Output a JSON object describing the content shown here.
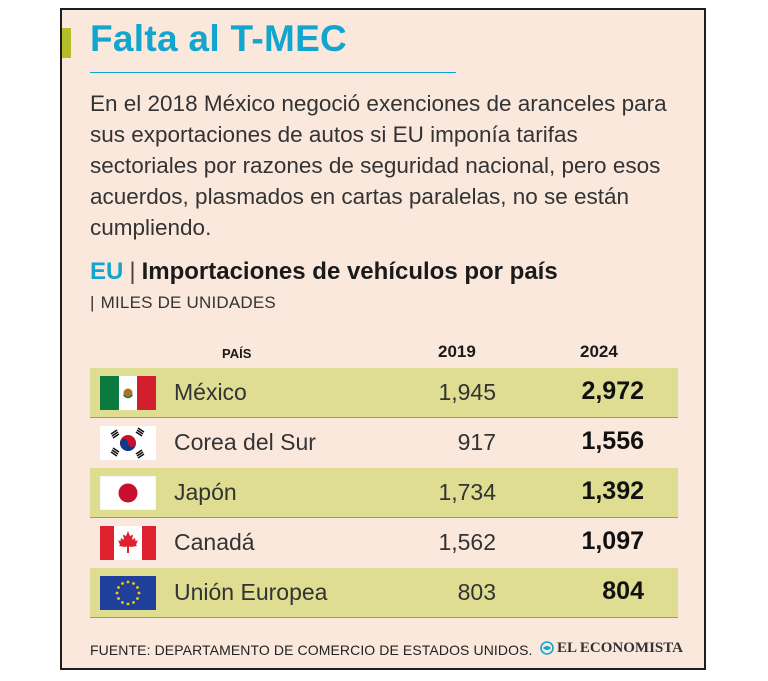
{
  "header": {
    "title": "Falta al T-MEC",
    "intro": "En el 2018 México negoció exenciones de aranceles para sus exportaciones de autos si EU imponía tarifas sectoriales por razones de seguridad nacional, pero esos acuerdos, plasmados en cartas paralelas, no se están cumpliendo."
  },
  "colors": {
    "accent": "#12a6cf",
    "title_bar": "#b4bd2a",
    "background": "#fbe8dc",
    "row_shade": "#dedd92"
  },
  "chart_data": {
    "type": "table",
    "title_prefix": "EU",
    "title_separator": "|",
    "title": "Importaciones de vehículos por país",
    "subtitle_separator": "|",
    "subtitle": "MILES DE UNIDADES",
    "columns": [
      "PAÍS",
      "2019",
      "2024"
    ],
    "rows": [
      {
        "country": "México",
        "flag": "mexico-flag-icon",
        "v2019": "1,945",
        "v2024": "2,972"
      },
      {
        "country": "Corea del Sur",
        "flag": "south-korea-flag-icon",
        "v2019": "917",
        "v2024": "1,556"
      },
      {
        "country": "Japón",
        "flag": "japan-flag-icon",
        "v2019": "1,734",
        "v2024": "1,392"
      },
      {
        "country": "Canadá",
        "flag": "canada-flag-icon",
        "v2019": "1,562",
        "v2024": "1,097"
      },
      {
        "country": "Unión Europea",
        "flag": "eu-flag-icon",
        "v2019": "803",
        "v2024": "804"
      }
    ]
  },
  "footer": {
    "source": "FUENTE: DEPARTAMENTO DE COMERCIO DE ESTADOS UNIDOS.",
    "logo_text": "EL ECONOMISTA"
  }
}
